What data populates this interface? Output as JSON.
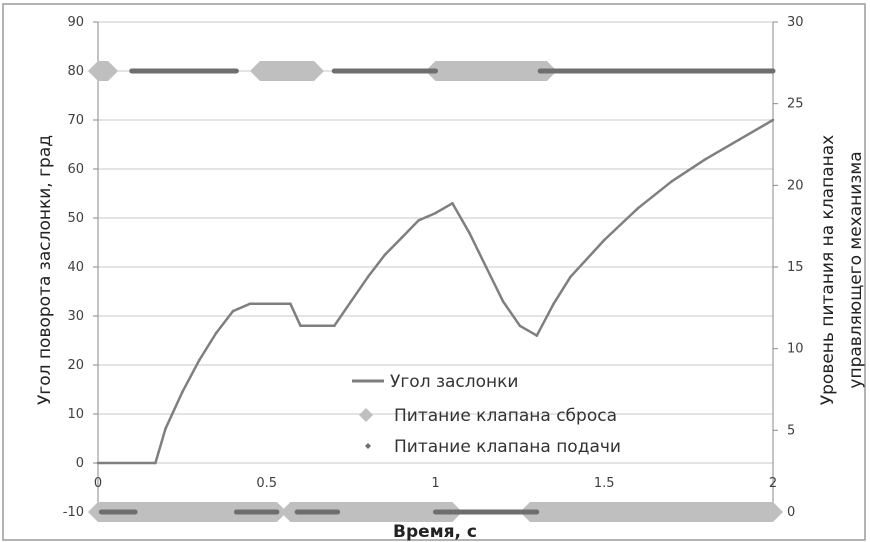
{
  "chart_data": {
    "type": "line",
    "xlabel": "Время, с",
    "ylabel": "Угол поворота заслонки, град",
    "y2label_lines": [
      "Уровень питания на клапанах",
      "управляющего механизма"
    ],
    "xlim": [
      0,
      2
    ],
    "ylim": [
      -10,
      90
    ],
    "y2lim": [
      0,
      30
    ],
    "x_ticks": [
      0,
      0.5,
      1,
      1.5,
      2
    ],
    "x_tick_labels": [
      "0",
      "0.5",
      "1",
      "1.5",
      "2"
    ],
    "y_ticks": [
      -10,
      0,
      10,
      20,
      30,
      40,
      50,
      60,
      70,
      80,
      90
    ],
    "y2_ticks": [
      0,
      5,
      10,
      15,
      20,
      25,
      30
    ],
    "grid": "horizontal",
    "legend_position": "center",
    "colors": {
      "angle_line": "#7f7f7f",
      "reset_valve": "#bfbfbf",
      "feed_valve": "#6e6e6e",
      "grid": "#c8c8c8",
      "border": "#9a9a9a"
    },
    "series": [
      {
        "name": "Угол заслонки",
        "axis": "left",
        "style": "line",
        "x": [
          0,
          0.17,
          0.2,
          0.25,
          0.3,
          0.35,
          0.4,
          0.45,
          0.47,
          0.5,
          0.57,
          0.6,
          0.7,
          0.75,
          0.8,
          0.85,
          0.9,
          0.95,
          1.0,
          1.05,
          1.1,
          1.15,
          1.2,
          1.25,
          1.3,
          1.35,
          1.4,
          1.5,
          1.6,
          1.7,
          1.8,
          1.9,
          2.0
        ],
        "y": [
          0,
          0,
          7,
          14.5,
          21,
          26.5,
          31,
          32.5,
          32.5,
          32.5,
          32.5,
          28,
          28,
          33,
          38,
          42.5,
          46,
          49.5,
          51,
          53,
          47,
          40,
          33,
          28,
          26,
          32.5,
          38,
          45.5,
          52,
          57.5,
          62,
          66,
          70
        ]
      },
      {
        "name": "Питание клапана сброса",
        "axis": "right",
        "style": "hexagon-bars",
        "segments": [
          {
            "start": 0,
            "end": 0.03,
            "level": 27
          },
          {
            "start": 0.48,
            "end": 0.64,
            "level": 27
          },
          {
            "start": 1.0,
            "end": 1.33,
            "level": 27
          },
          {
            "start": 0,
            "end": 0.53,
            "level": 0
          },
          {
            "start": 0.57,
            "end": 1.05,
            "level": 0
          },
          {
            "start": 1.28,
            "end": 2.0,
            "level": 0
          }
        ]
      },
      {
        "name": "Питание клапана подачи",
        "axis": "right",
        "style": "line-segments",
        "segments": [
          {
            "start": 0.1,
            "end": 0.41,
            "level": 27
          },
          {
            "start": 0.7,
            "end": 1.0,
            "level": 27
          },
          {
            "start": 1.31,
            "end": 2.0,
            "level": 27
          },
          {
            "start": 0.01,
            "end": 0.11,
            "level": 0
          },
          {
            "start": 0.41,
            "end": 0.53,
            "level": 0
          },
          {
            "start": 0.59,
            "end": 0.71,
            "level": 0
          },
          {
            "start": 1.0,
            "end": 1.3,
            "level": 0
          }
        ]
      }
    ]
  }
}
